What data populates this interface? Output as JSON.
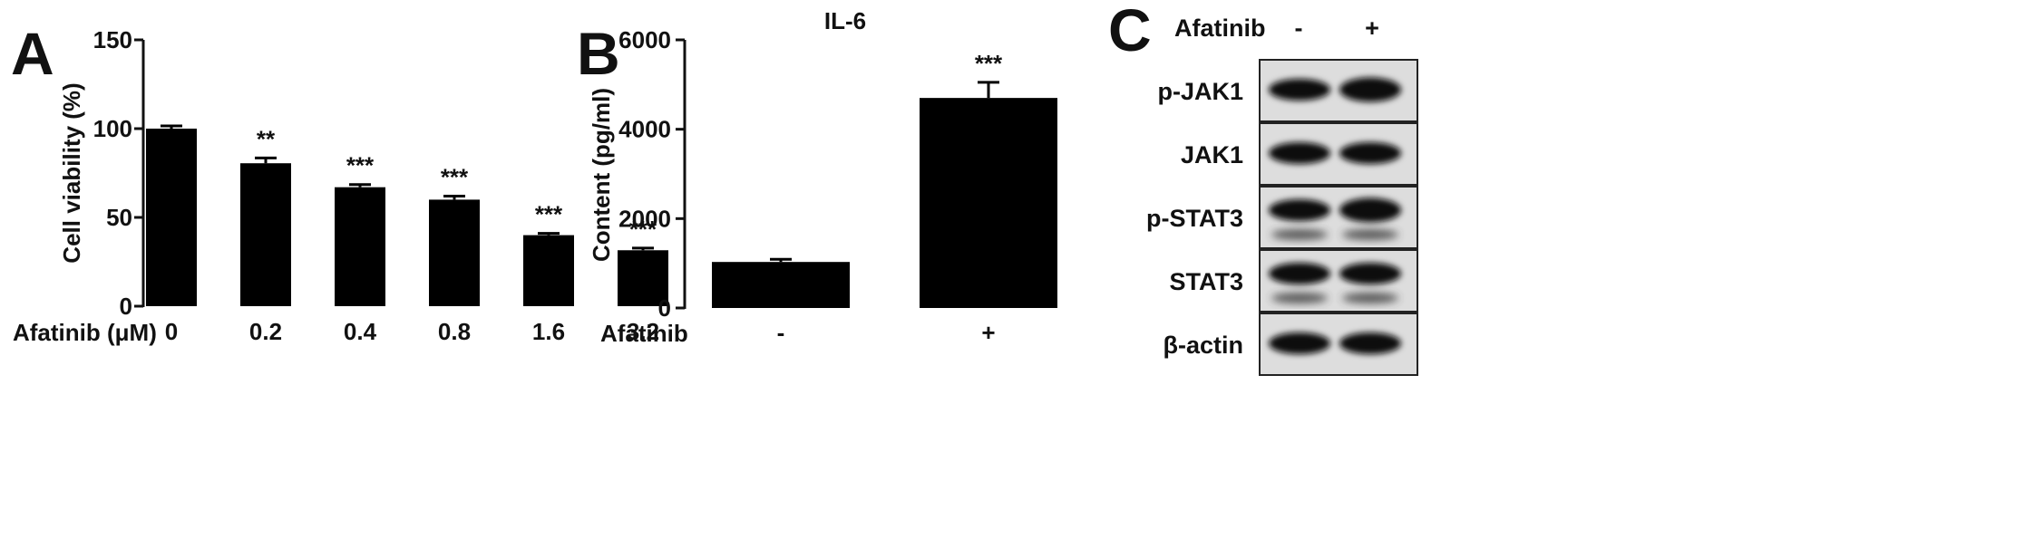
{
  "panels": {
    "a": {
      "letter": "A"
    },
    "b": {
      "letter": "B"
    },
    "c": {
      "letter": "C"
    }
  },
  "chart_data": [
    {
      "type": "bar",
      "title": "",
      "xlabel": "Afatinib (μM)",
      "ylabel": "Cell viability (%)",
      "ylim": [
        0,
        150
      ],
      "yticks": [
        "0",
        "50",
        "100",
        "150"
      ],
      "categories": [
        "0",
        "0.2",
        "0.4",
        "0.8",
        "1.6",
        "3.2"
      ],
      "values": [
        100,
        80.5,
        67,
        60,
        40,
        31.5
      ],
      "errors": [
        1.5,
        3,
        1.5,
        2,
        1,
        1.2
      ],
      "significance": [
        "",
        "**",
        "***",
        "***",
        "***",
        "***"
      ],
      "grid": false,
      "colors": {
        "bar": "#000000"
      }
    },
    {
      "type": "bar",
      "title": "IL-6",
      "xlabel": "Afatinib",
      "ylabel": "Content (pg/ml)",
      "ylim": [
        0,
        6000
      ],
      "yticks": [
        "0",
        "2000",
        "4000",
        "6000"
      ],
      "categories": [
        "-",
        "+"
      ],
      "values": [
        1030,
        4700
      ],
      "errors": [
        60,
        350
      ],
      "significance": [
        "",
        "***"
      ],
      "grid": false,
      "colors": {
        "bar": "#000000"
      }
    }
  ],
  "western_blot": {
    "header_label": "Afatinib",
    "lanes": [
      "-",
      "+"
    ],
    "rows": [
      {
        "label": "p-JAK1"
      },
      {
        "label": "JAK1"
      },
      {
        "label": "p-STAT3"
      },
      {
        "label": "STAT3"
      },
      {
        "label": "β-actin"
      }
    ]
  }
}
